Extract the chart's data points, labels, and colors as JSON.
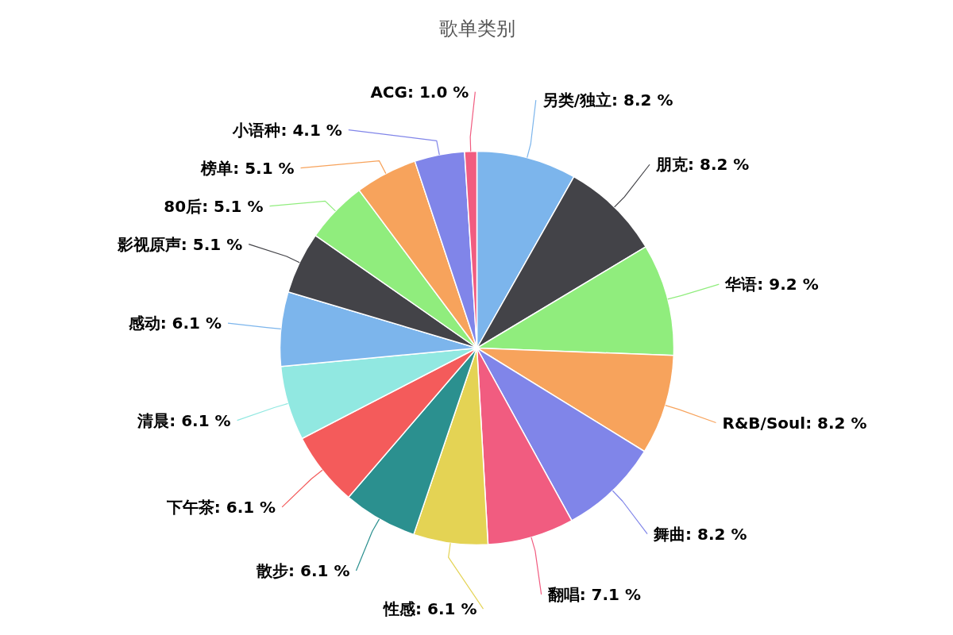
{
  "chart_data": {
    "type": "pie",
    "title": "歌单类别",
    "categories": [
      "另类/独立",
      "朋克",
      "华语",
      "R&B/Soul",
      "舞曲",
      "翻唱",
      "性感",
      "散步",
      "下午茶",
      "清晨",
      "感动",
      "影视原声",
      "80后",
      "榜单",
      "小语种",
      "ACG"
    ],
    "values": [
      8.2,
      8.2,
      9.2,
      8.2,
      8.2,
      7.1,
      6.1,
      6.1,
      6.1,
      6.1,
      6.1,
      5.1,
      5.1,
      5.1,
      4.1,
      1.0
    ],
    "colors": [
      "#7cb5ec",
      "#434348",
      "#90ed7d",
      "#f7a35c",
      "#8085e9",
      "#f15c80",
      "#e4d354",
      "#2b908f",
      "#f45b5b",
      "#91e8e1",
      "#7cb5ec",
      "#434348",
      "#90ed7d",
      "#f7a35c",
      "#8085e9",
      "#f15c80"
    ],
    "value_labels": [
      "8.2 %",
      "8.2 %",
      "9.2 %",
      "8.2 %",
      "8.2 %",
      "7.1 %",
      "6.1 %",
      "6.1 %",
      "6.1 %",
      "6.1 %",
      "6.1 %",
      "5.1 %",
      "5.1 %",
      "5.1 %",
      "4.1 %",
      "1.0 %"
    ]
  }
}
